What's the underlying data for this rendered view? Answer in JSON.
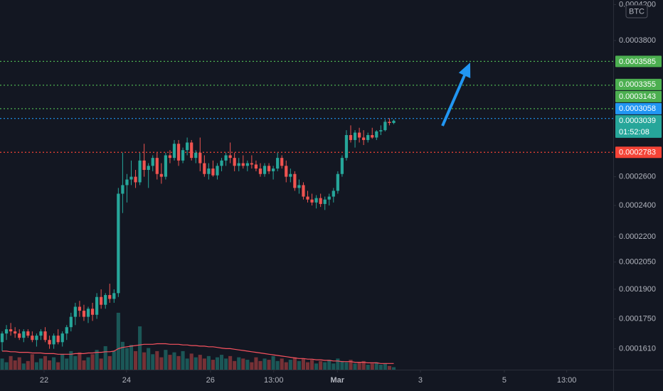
{
  "chart_data": {
    "type": "candlestick",
    "quote_currency": "BTC",
    "log_scale": true,
    "ylim": [
      0.0001519,
      0.0004254
    ],
    "yticks": [
      {
        "value": 0.00042,
        "label": "0.0004200"
      },
      {
        "value": 0.00038,
        "label": "0.0003800"
      },
      {
        "value": 0.00026,
        "label": "0.0002600"
      },
      {
        "value": 0.00024,
        "label": "0.0002400"
      },
      {
        "value": 0.00022,
        "label": "0.0002200"
      },
      {
        "value": 0.000205,
        "label": "0.0002050"
      },
      {
        "value": 0.00019,
        "label": "0.0001900"
      },
      {
        "value": 0.000175,
        "label": "0.0001750"
      },
      {
        "value": 0.000161,
        "label": "0.0001610"
      }
    ],
    "xlim": [
      -0.5,
      142
    ],
    "xticks": [
      {
        "value": 9.75,
        "label": "22"
      },
      {
        "value": 28.9,
        "label": "24"
      },
      {
        "value": 48.4,
        "label": "26"
      },
      {
        "value": 63.1,
        "label": "13:00"
      },
      {
        "value": 77.9,
        "label": "Mar"
      },
      {
        "value": 97.2,
        "label": "3"
      },
      {
        "value": 116.7,
        "label": "5"
      },
      {
        "value": 131.2,
        "label": "13:00"
      }
    ],
    "up_color": "#26a69a",
    "down_color": "#ef5350",
    "open": [
      0.000164,
      0.000168,
      0.00017,
      0.000169,
      0.000168,
      0.000166,
      0.000169,
      0.000167,
      0.000165,
      0.000167,
      0.000169,
      0.000165,
      0.000163,
      0.000167,
      0.000164,
      0.000168,
      0.000171,
      0.000176,
      0.000181,
      0.000179,
      0.000176,
      0.00018,
      0.000177,
      0.000186,
      0.000182,
      0.000187,
      0.000185,
      0.000188,
      0.000248,
      0.000254,
      0.000258,
      0.00026,
      0.000256,
      0.000272,
      0.000265,
      0.000268,
      0.000274,
      0.000262,
      0.00026,
      0.000276,
      0.000274,
      0.000285,
      0.000272,
      0.00028,
      0.000286,
      0.000274,
      0.000278,
      0.00027,
      0.000262,
      0.000266,
      0.000261,
      0.000268,
      0.000272,
      0.000276,
      0.000274,
      0.000268,
      0.00027,
      0.000268,
      0.00027,
      0.000269,
      0.000266,
      0.000262,
      0.000268,
      0.000264,
      0.000266,
      0.000274,
      0.000268,
      0.00026,
      0.000262,
      0.000252,
      0.000254,
      0.000246,
      0.000244,
      0.000242,
      0.000245,
      0.000241,
      0.000244,
      0.000246,
      0.00025,
      0.000262,
      0.000274,
      0.000292,
      0.000288,
      0.000294,
      0.00029,
      0.000288,
      0.000292,
      0.00029,
      0.000295,
      0.000296,
      0.000303,
      0.000302
    ],
    "high": [
      0.000169,
      0.000172,
      0.000173,
      0.000171,
      0.00017,
      0.00017,
      0.00017,
      0.000169,
      0.000168,
      0.00017,
      0.000171,
      0.000167,
      0.000168,
      0.00017,
      0.000169,
      0.000172,
      0.000178,
      0.000183,
      0.000184,
      0.000182,
      0.000181,
      0.000183,
      0.000188,
      0.00019,
      0.000188,
      0.000193,
      0.00019,
      0.000252,
      0.000278,
      0.000262,
      0.000272,
      0.000265,
      0.000278,
      0.000285,
      0.00027,
      0.000276,
      0.000278,
      0.00027,
      0.000278,
      0.00028,
      0.000288,
      0.000288,
      0.000282,
      0.00029,
      0.000288,
      0.00028,
      0.00029,
      0.000276,
      0.00027,
      0.000272,
      0.00027,
      0.000274,
      0.000278,
      0.000286,
      0.000278,
      0.000274,
      0.000276,
      0.000272,
      0.000276,
      0.000272,
      0.00027,
      0.00027,
      0.00027,
      0.000268,
      0.000278,
      0.000276,
      0.000272,
      0.000266,
      0.000264,
      0.000258,
      0.000256,
      0.00025,
      0.000248,
      0.000247,
      0.000248,
      0.000246,
      0.000248,
      0.000252,
      0.000264,
      0.000276,
      0.000296,
      0.0003,
      0.000296,
      0.000298,
      0.000296,
      0.000294,
      0.000298,
      0.000296,
      0.0003,
      0.000305,
      0.000306,
      0.000305
    ],
    "low": [
      0.00016,
      0.000165,
      0.000167,
      0.000166,
      0.000165,
      0.000164,
      0.000166,
      0.000164,
      0.000162,
      0.000165,
      0.000164,
      0.000161,
      0.000161,
      0.000163,
      0.000162,
      0.000165,
      0.000169,
      0.000172,
      0.000176,
      0.000174,
      0.000173,
      0.000174,
      0.000175,
      0.00018,
      0.00018,
      0.000183,
      0.000183,
      0.000186,
      0.000235,
      0.000242,
      0.000254,
      0.000252,
      0.000254,
      0.00026,
      0.000252,
      0.000264,
      0.000258,
      0.000255,
      0.000258,
      0.00027,
      0.000272,
      0.000268,
      0.00027,
      0.000276,
      0.000272,
      0.00027,
      0.000264,
      0.00026,
      0.000258,
      0.00026,
      0.000258,
      0.000264,
      0.000268,
      0.00027,
      0.000264,
      0.000264,
      0.000266,
      0.000264,
      0.000266,
      0.000264,
      0.00026,
      0.00026,
      0.000262,
      0.000258,
      0.000264,
      0.000266,
      0.000256,
      0.000256,
      0.00025,
      0.000248,
      0.000244,
      0.000242,
      0.00024,
      0.000238,
      0.000239,
      0.000237,
      0.00024,
      0.000242,
      0.000248,
      0.00026,
      0.000272,
      0.000286,
      0.000282,
      0.000286,
      0.000284,
      0.000286,
      0.000289,
      0.000288,
      0.000292,
      0.000295,
      0.0003,
      0.000301
    ],
    "close": [
      0.000168,
      0.00017,
      0.000169,
      0.000168,
      0.000166,
      0.000169,
      0.000167,
      0.000165,
      0.000167,
      0.000169,
      0.000165,
      0.000163,
      0.000167,
      0.000164,
      0.000168,
      0.000171,
      0.000176,
      0.000181,
      0.000179,
      0.000176,
      0.00018,
      0.000177,
      0.000186,
      0.000182,
      0.000187,
      0.000185,
      0.000188,
      0.000248,
      0.000254,
      0.000258,
      0.00026,
      0.000256,
      0.000272,
      0.000265,
      0.000268,
      0.000274,
      0.000262,
      0.00026,
      0.000276,
      0.000274,
      0.000285,
      0.000272,
      0.00028,
      0.000286,
      0.000274,
      0.000278,
      0.00027,
      0.000262,
      0.000266,
      0.000261,
      0.000268,
      0.000272,
      0.000276,
      0.000274,
      0.000268,
      0.00027,
      0.000268,
      0.00027,
      0.000269,
      0.000266,
      0.000262,
      0.000268,
      0.000264,
      0.000266,
      0.000274,
      0.000268,
      0.00026,
      0.000262,
      0.000252,
      0.000254,
      0.000246,
      0.000244,
      0.000242,
      0.000245,
      0.000241,
      0.000244,
      0.000246,
      0.00025,
      0.000262,
      0.000274,
      0.000292,
      0.000288,
      0.000294,
      0.00029,
      0.000288,
      0.000292,
      0.00029,
      0.000295,
      0.000296,
      0.000303,
      0.000302,
      0.0003039
    ],
    "volume": [
      18,
      12,
      22,
      15,
      20,
      10,
      14,
      25,
      12,
      18,
      22,
      15,
      20,
      12,
      25,
      18,
      30,
      22,
      28,
      15,
      20,
      25,
      32,
      18,
      38,
      22,
      30,
      92,
      45,
      35,
      40,
      30,
      70,
      28,
      35,
      25,
      30,
      20,
      32,
      24,
      28,
      22,
      30,
      18,
      26,
      20,
      24,
      18,
      22,
      16,
      20,
      24,
      18,
      22,
      14,
      20,
      18,
      16,
      12,
      20,
      14,
      18,
      16,
      22,
      14,
      18,
      12,
      16,
      20,
      14,
      18,
      12,
      16,
      10,
      14,
      12,
      16,
      10,
      18,
      14,
      12,
      16,
      10,
      12,
      14,
      8,
      10,
      12,
      8,
      10,
      6,
      4
    ],
    "volume_ma": [
      30,
      30,
      29,
      29,
      28,
      28,
      28,
      27,
      27,
      27,
      26,
      26,
      26,
      25,
      25,
      25,
      25,
      26,
      26,
      26,
      27,
      27,
      28,
      28,
      29,
      29,
      30,
      34,
      36,
      37,
      38,
      39,
      40,
      41,
      41,
      41,
      42,
      42,
      42,
      41,
      41,
      41,
      40,
      40,
      39,
      39,
      38,
      38,
      37,
      37,
      36,
      35,
      34,
      34,
      33,
      32,
      31,
      30,
      29,
      28,
      27,
      26,
      25,
      24,
      23,
      22,
      21,
      20,
      19,
      18,
      18,
      17,
      17,
      16,
      16,
      15,
      15,
      14,
      14,
      13,
      13,
      13,
      12,
      12,
      12,
      11,
      11,
      11,
      10,
      10,
      10,
      10
    ],
    "volume_ma_color": "#f7525f",
    "levels": [
      {
        "value": 0.0003585,
        "color": "#4caf50"
      },
      {
        "value": 0.0003355,
        "color": "#4caf50"
      },
      {
        "value": 0.0003143,
        "color": "#4caf50"
      },
      {
        "value": 0.0003058,
        "color": "#2196f3"
      },
      {
        "value": 0.0002783,
        "color": "#f44336"
      }
    ],
    "last_price": 0.0003039,
    "countdown": "01:52:08"
  }
}
